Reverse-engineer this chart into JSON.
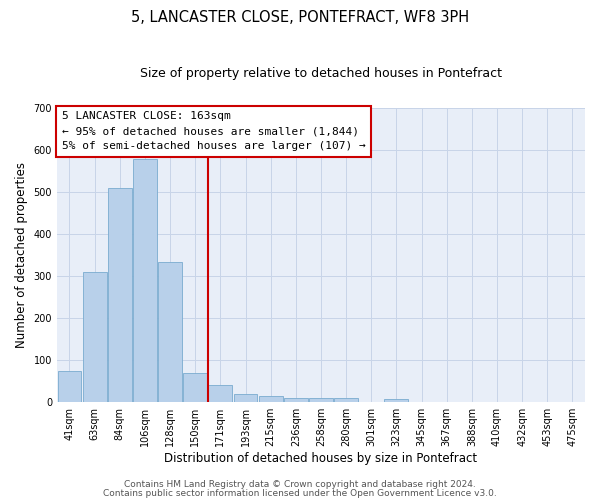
{
  "title": "5, LANCASTER CLOSE, PONTEFRACT, WF8 3PH",
  "subtitle": "Size of property relative to detached houses in Pontefract",
  "xlabel": "Distribution of detached houses by size in Pontefract",
  "ylabel": "Number of detached properties",
  "bar_labels": [
    "41sqm",
    "63sqm",
    "84sqm",
    "106sqm",
    "128sqm",
    "150sqm",
    "171sqm",
    "193sqm",
    "215sqm",
    "236sqm",
    "258sqm",
    "280sqm",
    "301sqm",
    "323sqm",
    "345sqm",
    "367sqm",
    "388sqm",
    "410sqm",
    "432sqm",
    "453sqm",
    "475sqm"
  ],
  "bar_values": [
    75,
    310,
    510,
    578,
    333,
    70,
    40,
    20,
    15,
    10,
    10,
    10,
    0,
    7,
    0,
    0,
    0,
    0,
    0,
    0,
    0
  ],
  "bar_color": "#b8d0ea",
  "bar_edge_color": "#7aabcf",
  "vline_x": 5.5,
  "vline_color": "#cc0000",
  "ylim": [
    0,
    700
  ],
  "yticks": [
    0,
    100,
    200,
    300,
    400,
    500,
    600,
    700
  ],
  "annotation_title": "5 LANCASTER CLOSE: 163sqm",
  "annotation_line1": "← 95% of detached houses are smaller (1,844)",
  "annotation_line2": "5% of semi-detached houses are larger (107) →",
  "footer_line1": "Contains HM Land Registry data © Crown copyright and database right 2024.",
  "footer_line2": "Contains public sector information licensed under the Open Government Licence v3.0.",
  "background_color": "#e8eef8",
  "grid_color": "#c8d4e8",
  "title_fontsize": 10.5,
  "subtitle_fontsize": 9,
  "axis_label_fontsize": 8.5,
  "tick_fontsize": 7,
  "annotation_fontsize": 8,
  "footer_fontsize": 6.5
}
